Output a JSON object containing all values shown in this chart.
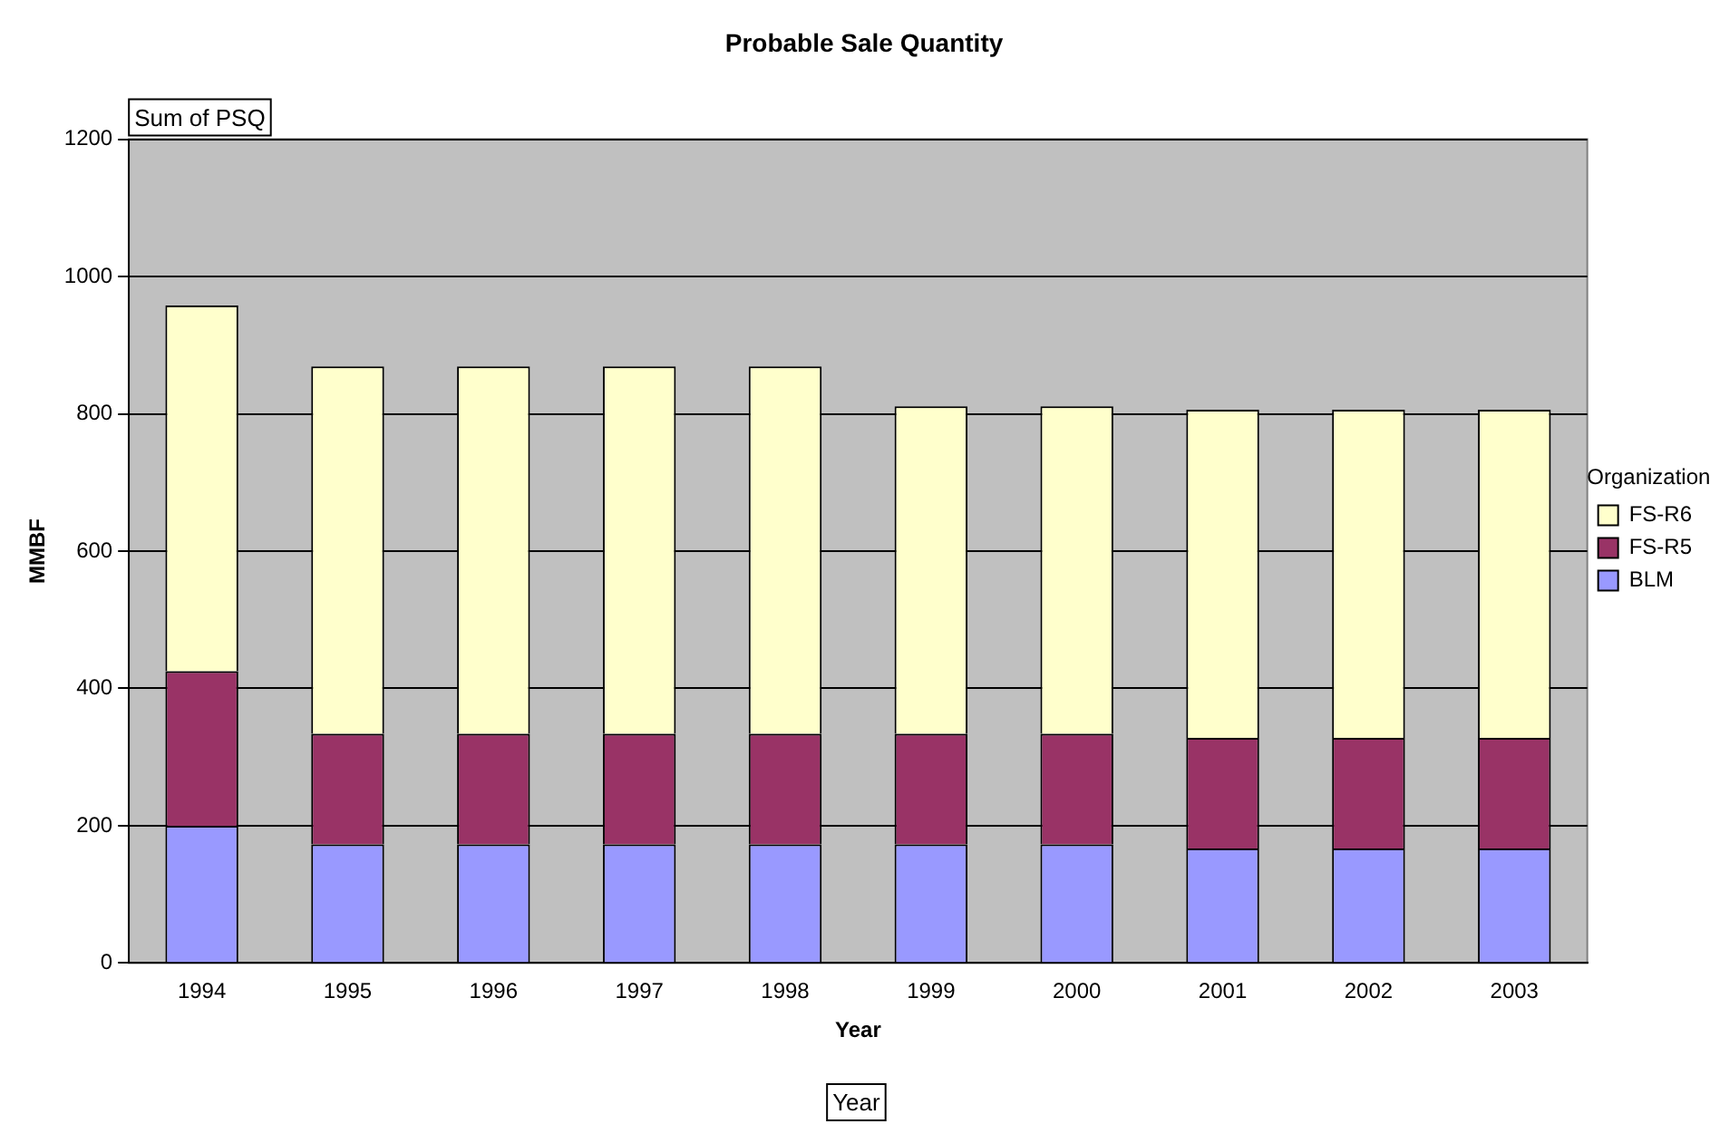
{
  "chart_data": {
    "type": "bar",
    "title": "Probable Sale Quantity",
    "xlabel": "Year",
    "ylabel": "MMBF",
    "legend_title": "Organization",
    "categories": [
      "1994",
      "1995",
      "1996",
      "1997",
      "1998",
      "1999",
      "2000",
      "2001",
      "2002",
      "2003"
    ],
    "series": [
      {
        "name": "BLM",
        "color": "#9999ff",
        "values": [
          200,
          173,
          173,
          173,
          173,
          173,
          173,
          167,
          167,
          167
        ]
      },
      {
        "name": "FS-R5",
        "color": "#993366",
        "values": [
          225,
          161,
          161,
          161,
          161,
          161,
          161,
          161,
          161,
          161
        ]
      },
      {
        "name": "FS-R6",
        "color": "#ffffcc",
        "values": [
          533,
          535,
          535,
          535,
          535,
          477,
          477,
          478,
          478,
          478
        ]
      }
    ],
    "stacked": true,
    "ylim": [
      0,
      1200
    ],
    "yticks": [
      0,
      200,
      400,
      600,
      800,
      1000,
      1200
    ],
    "grid": "y",
    "legend": "right",
    "annotations": [
      "Sum of PSQ",
      "Year"
    ]
  }
}
